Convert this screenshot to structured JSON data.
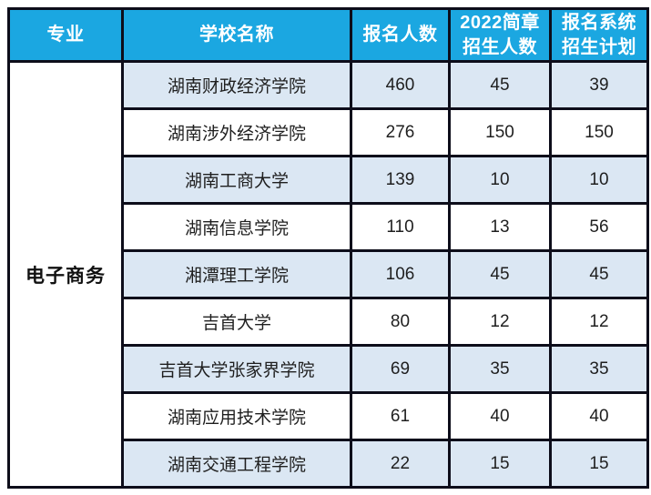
{
  "colors": {
    "header_bg": "#1ba7e1",
    "header_text": "#ffffff",
    "alt_row_bg": "#dbe7f3",
    "row_bg": "#ffffff",
    "border": "#0d0d1a",
    "body_text": "#1f1f1f"
  },
  "table": {
    "headers": [
      "专业",
      "学校名称",
      "报名人数",
      "2022简章\n招生人数",
      "报名系统\n招生计划"
    ],
    "major": "电子商务",
    "rows": [
      {
        "school": "湖南财政经济学院",
        "applicants": "460",
        "brochure_plan": "45",
        "system_plan": "39"
      },
      {
        "school": "湖南涉外经济学院",
        "applicants": "276",
        "brochure_plan": "150",
        "system_plan": "150"
      },
      {
        "school": "湖南工商大学",
        "applicants": "139",
        "brochure_plan": "10",
        "system_plan": "10"
      },
      {
        "school": "湖南信息学院",
        "applicants": "110",
        "brochure_plan": "13",
        "system_plan": "56"
      },
      {
        "school": "湘潭理工学院",
        "applicants": "106",
        "brochure_plan": "45",
        "system_plan": "45"
      },
      {
        "school": "吉首大学",
        "applicants": "80",
        "brochure_plan": "12",
        "system_plan": "12"
      },
      {
        "school": "吉首大学张家界学院",
        "applicants": "69",
        "brochure_plan": "35",
        "system_plan": "35"
      },
      {
        "school": "湖南应用技术学院",
        "applicants": "61",
        "brochure_plan": "40",
        "system_plan": "40"
      },
      {
        "school": "湖南交通工程学院",
        "applicants": "22",
        "brochure_plan": "15",
        "system_plan": "15"
      }
    ]
  }
}
